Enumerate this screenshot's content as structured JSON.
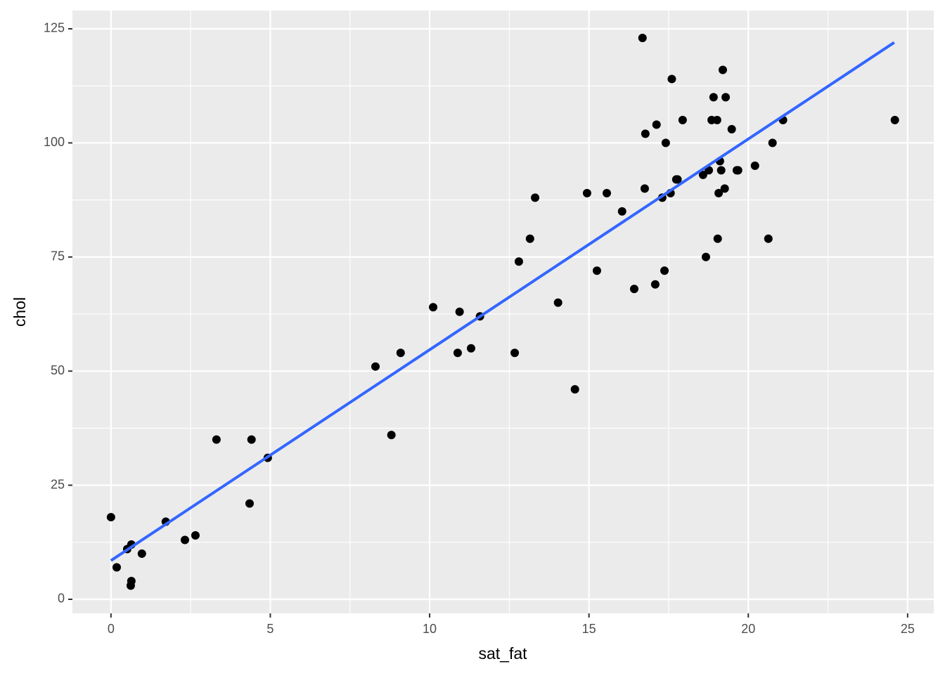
{
  "chart_data": {
    "type": "scatter",
    "x_label": "sat_fat",
    "y_label": "chol",
    "series": [
      {
        "color": "#000000",
        "x": [
          0,
          0.18,
          0.51,
          0.64,
          0.64,
          0.62,
          0.97,
          1.72,
          2.32,
          2.65,
          3.31,
          4.41,
          4.35,
          4.92,
          8.3,
          8.8,
          9.09,
          10.11,
          10.88,
          10.94,
          11.3,
          11.58,
          12.67,
          12.8,
          13.15,
          13.31,
          14.03,
          14.56,
          14.94,
          15.25,
          15.56,
          16.04,
          16.42,
          16.68,
          16.75,
          16.77,
          17.08,
          17.12,
          17.37,
          17.41,
          17.3,
          17.56,
          17.6,
          17.74,
          17.78,
          17.94,
          18.58,
          18.67,
          18.76,
          18.85,
          18.91,
          19.02,
          19.04,
          19.07,
          19.11,
          19.15,
          19.2,
          19.26,
          19.29,
          19.48,
          19.64,
          19.68,
          20.21,
          20.63,
          20.76,
          21.09,
          24.6
        ],
        "values": [
          18,
          7,
          11,
          12,
          4,
          3,
          10,
          17,
          13,
          14,
          35,
          35,
          21,
          31,
          51,
          36,
          54,
          64,
          54,
          63,
          55,
          62,
          54,
          74,
          79,
          88,
          65,
          46,
          89,
          72,
          89,
          85,
          68,
          123,
          90,
          102,
          69,
          104,
          72,
          100,
          88,
          89,
          114,
          92,
          92,
          105,
          93,
          75,
          94,
          105,
          110,
          105,
          79,
          89,
          96,
          94,
          116,
          90,
          110,
          103,
          94,
          94,
          95,
          79,
          100,
          105,
          105
        ]
      }
    ],
    "smooth": {
      "color": "#3366ff",
      "x": [
        0,
        24.58
      ],
      "values": [
        8.5,
        122
      ]
    },
    "xlim": [
      -1.21,
      25.82
    ],
    "ylim": [
      -3.08,
      129
    ],
    "xticks": [
      0,
      5,
      10,
      15,
      20,
      25
    ],
    "yticks": [
      0,
      25,
      50,
      75,
      100,
      125
    ],
    "grid": true,
    "panel_color": "#ebebeb"
  }
}
